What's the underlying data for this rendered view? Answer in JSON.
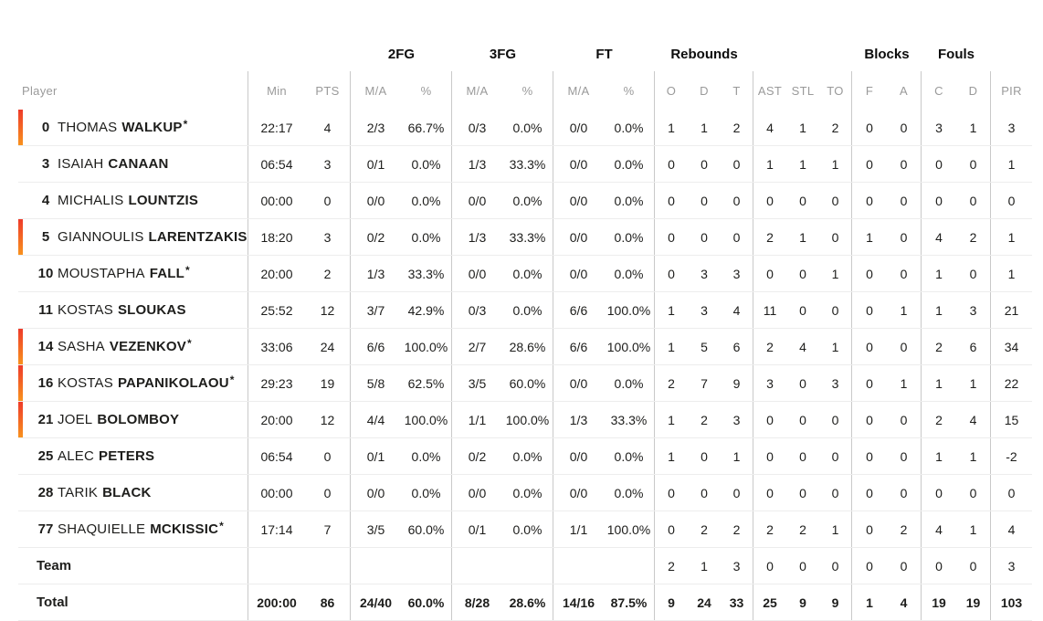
{
  "colors": {
    "on_court_bar_top": "#ee3b2a",
    "on_court_bar_bottom": "#f8921e",
    "header_text": "#9a9a9a",
    "divider": "#c9c9c9",
    "row_separator": "#ededed",
    "text": "#1d1d1b"
  },
  "table": {
    "starter_marker": "*",
    "groups": {
      "fg2": "2FG",
      "fg3": "3FG",
      "ft": "FT",
      "rebounds": "Rebounds",
      "blocks": "Blocks",
      "fouls": "Fouls"
    },
    "columns": {
      "player": "Player",
      "min": "Min",
      "pts": "PTS",
      "ma": "M/A",
      "pct": "%",
      "reb_o": "O",
      "reb_d": "D",
      "reb_t": "T",
      "ast": "AST",
      "stl": "STL",
      "to": "TO",
      "blk_fv": "F",
      "blk_ag": "A",
      "foul_cm": "C",
      "foul_rv": "D",
      "pir": "PIR"
    },
    "rows": [
      {
        "number": "0",
        "first_name": "THOMAS",
        "last_name": "WALKUP",
        "starter": true,
        "on_court": true,
        "min": "22:17",
        "pts": "4",
        "fg2_ma": "2/3",
        "fg2_pct": "66.7%",
        "fg3_ma": "0/3",
        "fg3_pct": "0.0%",
        "ft_ma": "0/0",
        "ft_pct": "0.0%",
        "reb_o": "1",
        "reb_d": "1",
        "reb_t": "2",
        "ast": "4",
        "stl": "1",
        "to": "2",
        "blk_fv": "0",
        "blk_ag": "0",
        "foul_cm": "3",
        "foul_rv": "1",
        "pir": "3"
      },
      {
        "number": "3",
        "first_name": "ISAIAH",
        "last_name": "CANAAN",
        "starter": false,
        "on_court": false,
        "min": "06:54",
        "pts": "3",
        "fg2_ma": "0/1",
        "fg2_pct": "0.0%",
        "fg3_ma": "1/3",
        "fg3_pct": "33.3%",
        "ft_ma": "0/0",
        "ft_pct": "0.0%",
        "reb_o": "0",
        "reb_d": "0",
        "reb_t": "0",
        "ast": "1",
        "stl": "1",
        "to": "1",
        "blk_fv": "0",
        "blk_ag": "0",
        "foul_cm": "0",
        "foul_rv": "0",
        "pir": "1"
      },
      {
        "number": "4",
        "first_name": "MICHALIS",
        "last_name": "LOUNTZIS",
        "starter": false,
        "on_court": false,
        "min": "00:00",
        "pts": "0",
        "fg2_ma": "0/0",
        "fg2_pct": "0.0%",
        "fg3_ma": "0/0",
        "fg3_pct": "0.0%",
        "ft_ma": "0/0",
        "ft_pct": "0.0%",
        "reb_o": "0",
        "reb_d": "0",
        "reb_t": "0",
        "ast": "0",
        "stl": "0",
        "to": "0",
        "blk_fv": "0",
        "blk_ag": "0",
        "foul_cm": "0",
        "foul_rv": "0",
        "pir": "0"
      },
      {
        "number": "5",
        "first_name": "GIANNOULIS",
        "last_name": "LARENTZAKIS",
        "starter": false,
        "on_court": true,
        "min": "18:20",
        "pts": "3",
        "fg2_ma": "0/2",
        "fg2_pct": "0.0%",
        "fg3_ma": "1/3",
        "fg3_pct": "33.3%",
        "ft_ma": "0/0",
        "ft_pct": "0.0%",
        "reb_o": "0",
        "reb_d": "0",
        "reb_t": "0",
        "ast": "2",
        "stl": "1",
        "to": "0",
        "blk_fv": "1",
        "blk_ag": "0",
        "foul_cm": "4",
        "foul_rv": "2",
        "pir": "1"
      },
      {
        "number": "10",
        "first_name": "MOUSTAPHA",
        "last_name": "FALL",
        "starter": true,
        "on_court": false,
        "min": "20:00",
        "pts": "2",
        "fg2_ma": "1/3",
        "fg2_pct": "33.3%",
        "fg3_ma": "0/0",
        "fg3_pct": "0.0%",
        "ft_ma": "0/0",
        "ft_pct": "0.0%",
        "reb_o": "0",
        "reb_d": "3",
        "reb_t": "3",
        "ast": "0",
        "stl": "0",
        "to": "1",
        "blk_fv": "0",
        "blk_ag": "0",
        "foul_cm": "1",
        "foul_rv": "0",
        "pir": "1"
      },
      {
        "number": "11",
        "first_name": "KOSTAS",
        "last_name": "SLOUKAS",
        "starter": false,
        "on_court": false,
        "min": "25:52",
        "pts": "12",
        "fg2_ma": "3/7",
        "fg2_pct": "42.9%",
        "fg3_ma": "0/3",
        "fg3_pct": "0.0%",
        "ft_ma": "6/6",
        "ft_pct": "100.0%",
        "reb_o": "1",
        "reb_d": "3",
        "reb_t": "4",
        "ast": "11",
        "stl": "0",
        "to": "0",
        "blk_fv": "0",
        "blk_ag": "1",
        "foul_cm": "1",
        "foul_rv": "3",
        "pir": "21"
      },
      {
        "number": "14",
        "first_name": "SASHA",
        "last_name": "VEZENKOV",
        "starter": true,
        "on_court": true,
        "min": "33:06",
        "pts": "24",
        "fg2_ma": "6/6",
        "fg2_pct": "100.0%",
        "fg3_ma": "2/7",
        "fg3_pct": "28.6%",
        "ft_ma": "6/6",
        "ft_pct": "100.0%",
        "reb_o": "1",
        "reb_d": "5",
        "reb_t": "6",
        "ast": "2",
        "stl": "4",
        "to": "1",
        "blk_fv": "0",
        "blk_ag": "0",
        "foul_cm": "2",
        "foul_rv": "6",
        "pir": "34"
      },
      {
        "number": "16",
        "first_name": "KOSTAS",
        "last_name": "PAPANIKOLAOU",
        "starter": true,
        "on_court": true,
        "min": "29:23",
        "pts": "19",
        "fg2_ma": "5/8",
        "fg2_pct": "62.5%",
        "fg3_ma": "3/5",
        "fg3_pct": "60.0%",
        "ft_ma": "0/0",
        "ft_pct": "0.0%",
        "reb_o": "2",
        "reb_d": "7",
        "reb_t": "9",
        "ast": "3",
        "stl": "0",
        "to": "3",
        "blk_fv": "0",
        "blk_ag": "1",
        "foul_cm": "1",
        "foul_rv": "1",
        "pir": "22"
      },
      {
        "number": "21",
        "first_name": "JOEL",
        "last_name": "BOLOMBOY",
        "starter": false,
        "on_court": true,
        "min": "20:00",
        "pts": "12",
        "fg2_ma": "4/4",
        "fg2_pct": "100.0%",
        "fg3_ma": "1/1",
        "fg3_pct": "100.0%",
        "ft_ma": "1/3",
        "ft_pct": "33.3%",
        "reb_o": "1",
        "reb_d": "2",
        "reb_t": "3",
        "ast": "0",
        "stl": "0",
        "to": "0",
        "blk_fv": "0",
        "blk_ag": "0",
        "foul_cm": "2",
        "foul_rv": "4",
        "pir": "15"
      },
      {
        "number": "25",
        "first_name": "ALEC",
        "last_name": "PETERS",
        "starter": false,
        "on_court": false,
        "min": "06:54",
        "pts": "0",
        "fg2_ma": "0/1",
        "fg2_pct": "0.0%",
        "fg3_ma": "0/2",
        "fg3_pct": "0.0%",
        "ft_ma": "0/0",
        "ft_pct": "0.0%",
        "reb_o": "1",
        "reb_d": "0",
        "reb_t": "1",
        "ast": "0",
        "stl": "0",
        "to": "0",
        "blk_fv": "0",
        "blk_ag": "0",
        "foul_cm": "1",
        "foul_rv": "1",
        "pir": "-2"
      },
      {
        "number": "28",
        "first_name": "TARIK",
        "last_name": "BLACK",
        "starter": false,
        "on_court": false,
        "min": "00:00",
        "pts": "0",
        "fg2_ma": "0/0",
        "fg2_pct": "0.0%",
        "fg3_ma": "0/0",
        "fg3_pct": "0.0%",
        "ft_ma": "0/0",
        "ft_pct": "0.0%",
        "reb_o": "0",
        "reb_d": "0",
        "reb_t": "0",
        "ast": "0",
        "stl": "0",
        "to": "0",
        "blk_fv": "0",
        "blk_ag": "0",
        "foul_cm": "0",
        "foul_rv": "0",
        "pir": "0"
      },
      {
        "number": "77",
        "first_name": "SHAQUIELLE",
        "last_name": "MCKISSIC",
        "starter": true,
        "on_court": false,
        "min": "17:14",
        "pts": "7",
        "fg2_ma": "3/5",
        "fg2_pct": "60.0%",
        "fg3_ma": "0/1",
        "fg3_pct": "0.0%",
        "ft_ma": "1/1",
        "ft_pct": "100.0%",
        "reb_o": "0",
        "reb_d": "2",
        "reb_t": "2",
        "ast": "2",
        "stl": "2",
        "to": "1",
        "blk_fv": "0",
        "blk_ag": "2",
        "foul_cm": "4",
        "foul_rv": "1",
        "pir": "4"
      }
    ],
    "team_row": {
      "label": "Team",
      "reb_o": "2",
      "reb_d": "1",
      "reb_t": "3",
      "ast": "0",
      "stl": "0",
      "to": "0",
      "blk_fv": "0",
      "blk_ag": "0",
      "foul_cm": "0",
      "foul_rv": "0",
      "pir": "3"
    },
    "total_row": {
      "label": "Total",
      "min": "200:00",
      "pts": "86",
      "fg2_ma": "24/40",
      "fg2_pct": "60.0%",
      "fg3_ma": "8/28",
      "fg3_pct": "28.6%",
      "ft_ma": "14/16",
      "ft_pct": "87.5%",
      "reb_o": "9",
      "reb_d": "24",
      "reb_t": "33",
      "ast": "25",
      "stl": "9",
      "to": "9",
      "blk_fv": "1",
      "blk_ag": "4",
      "foul_cm": "19",
      "foul_rv": "19",
      "pir": "103"
    }
  }
}
